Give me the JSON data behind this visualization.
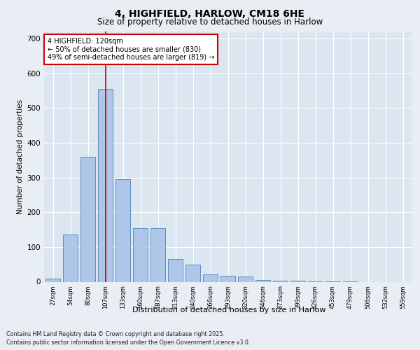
{
  "title_line1": "4, HIGHFIELD, HARLOW, CM18 6HE",
  "title_line2": "Size of property relative to detached houses in Harlow",
  "xlabel": "Distribution of detached houses by size in Harlow",
  "ylabel": "Number of detached properties",
  "categories": [
    "27sqm",
    "54sqm",
    "80sqm",
    "107sqm",
    "133sqm",
    "160sqm",
    "187sqm",
    "213sqm",
    "240sqm",
    "266sqm",
    "293sqm",
    "320sqm",
    "346sqm",
    "373sqm",
    "399sqm",
    "426sqm",
    "453sqm",
    "479sqm",
    "506sqm",
    "532sqm",
    "559sqm"
  ],
  "values": [
    10,
    135,
    360,
    555,
    295,
    155,
    155,
    65,
    50,
    22,
    17,
    15,
    6,
    4,
    3,
    2,
    1,
    1,
    0,
    0,
    0
  ],
  "bar_color": "#aec6e8",
  "bar_edge_color": "#5a8fc0",
  "highlight_index": 3,
  "highlight_line_color": "#cc0000",
  "annotation_text": "4 HIGHFIELD: 120sqm\n← 50% of detached houses are smaller (830)\n49% of semi-detached houses are larger (819) →",
  "annotation_box_color": "#ffffff",
  "annotation_box_edge_color": "#cc0000",
  "ylim": [
    0,
    720
  ],
  "yticks": [
    0,
    100,
    200,
    300,
    400,
    500,
    600,
    700
  ],
  "footer_line1": "Contains HM Land Registry data © Crown copyright and database right 2025.",
  "footer_line2": "Contains public sector information licensed under the Open Government Licence v3.0.",
  "bg_color": "#e8eef4",
  "plot_bg_color": "#dce6f0"
}
